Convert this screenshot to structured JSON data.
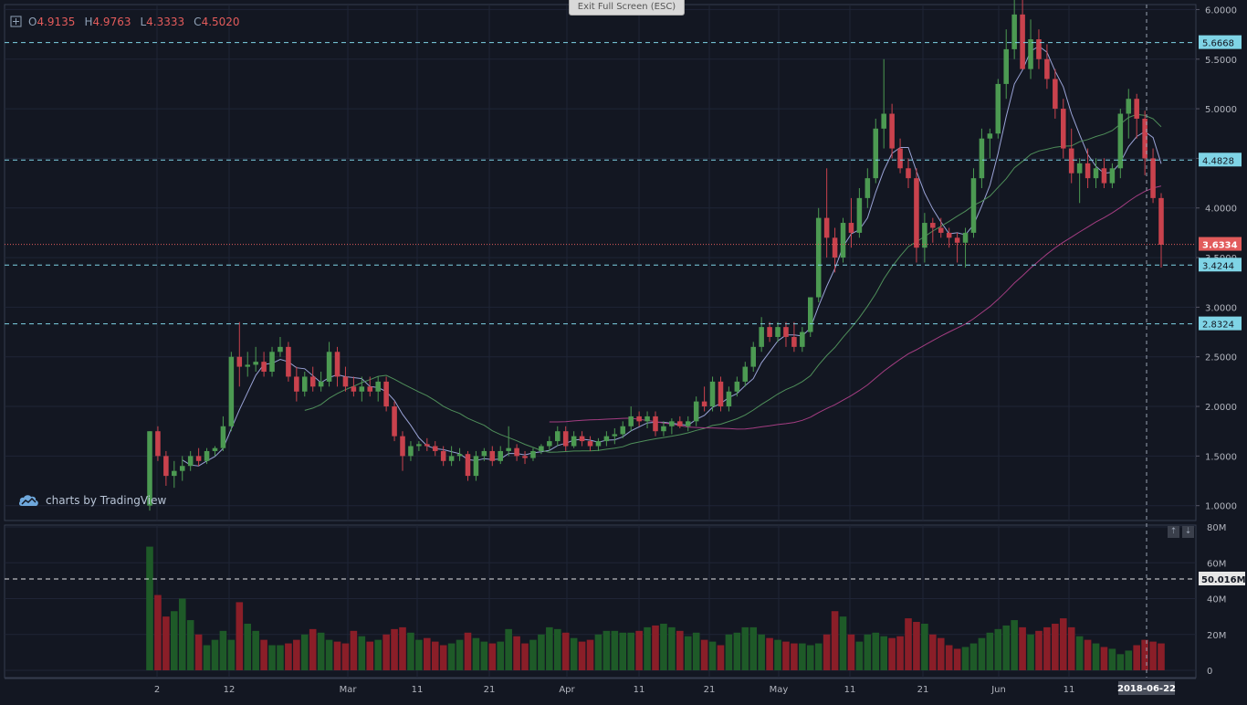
{
  "ui": {
    "exit_fullscreen_label": "Exit Full Screen (ESC)",
    "branding_text": "charts by TradingView",
    "ohlc": {
      "open_label": "O",
      "open_value": "4.9135",
      "high_label": "H",
      "high_value": "4.9763",
      "low_label": "L",
      "low_value": "4.3333",
      "close_label": "C",
      "close_value": "4.5020"
    },
    "crosshair_date_label": "2018-06-22",
    "volume_level_label": "50.016M",
    "current_price_label": "3.6334",
    "horizontal_lines": [
      "5.6668",
      "4.4828",
      "3.4244",
      "2.8324"
    ],
    "scale_buttons": [
      "⇡",
      "⇣"
    ]
  },
  "chart_data": {
    "type": "candlestick",
    "price_axis": {
      "ticks": [
        "1.0000",
        "1.5000",
        "2.0000",
        "2.5000",
        "3.0000",
        "3.5000",
        "4.0000",
        "4.5000",
        "5.0000",
        "5.5000",
        "6.0000"
      ],
      "range": [
        0.85,
        6.05
      ]
    },
    "volume_axis": {
      "ticks": [
        "0",
        "20M",
        "40M",
        "60M",
        "80M"
      ],
      "range": [
        0,
        80
      ]
    },
    "time_axis": [
      "2",
      "12",
      "Mar",
      "11",
      "21",
      "Apr",
      "11",
      "21",
      "May",
      "11",
      "21",
      "Jun",
      "11"
    ],
    "colors": {
      "up": "#4c9a52",
      "down": "#c9424d",
      "up_volume": "#1e5a28",
      "down_volume": "#8a1e28",
      "ma_fast": "#9aa3d6",
      "ma_mid": "#4f8f5a",
      "ma_slow": "#a43d82",
      "hline": "#7fd4e6",
      "price_line": "#e25b5b",
      "volume_line": "#e6e6e6"
    },
    "candles": [
      [
        1.0,
        1.75,
        0.95,
        1.75
      ],
      [
        1.75,
        1.8,
        1.45,
        1.5
      ],
      [
        1.5,
        1.55,
        1.2,
        1.3
      ],
      [
        1.3,
        1.45,
        1.18,
        1.35
      ],
      [
        1.35,
        1.5,
        1.25,
        1.4
      ],
      [
        1.4,
        1.55,
        1.35,
        1.5
      ],
      [
        1.5,
        1.58,
        1.4,
        1.45
      ],
      [
        1.45,
        1.58,
        1.42,
        1.55
      ],
      [
        1.55,
        1.6,
        1.5,
        1.58
      ],
      [
        1.58,
        1.9,
        1.55,
        1.8
      ],
      [
        1.8,
        2.55,
        1.75,
        2.5
      ],
      [
        2.5,
        2.85,
        2.2,
        2.4
      ],
      [
        2.4,
        2.55,
        2.3,
        2.42
      ],
      [
        2.42,
        2.6,
        2.35,
        2.45
      ],
      [
        2.45,
        2.55,
        2.3,
        2.35
      ],
      [
        2.35,
        2.6,
        2.3,
        2.55
      ],
      [
        2.55,
        2.7,
        2.5,
        2.6
      ],
      [
        2.6,
        2.65,
        2.25,
        2.3
      ],
      [
        2.3,
        2.4,
        2.05,
        2.15
      ],
      [
        2.15,
        2.35,
        2.1,
        2.3
      ],
      [
        2.3,
        2.4,
        2.15,
        2.2
      ],
      [
        2.2,
        2.35,
        2.15,
        2.25
      ],
      [
        2.25,
        2.65,
        2.2,
        2.55
      ],
      [
        2.55,
        2.6,
        2.2,
        2.3
      ],
      [
        2.3,
        2.4,
        2.15,
        2.2
      ],
      [
        2.2,
        2.3,
        2.1,
        2.15
      ],
      [
        2.15,
        2.3,
        2.05,
        2.2
      ],
      [
        2.2,
        2.3,
        2.1,
        2.15
      ],
      [
        2.15,
        2.3,
        2.05,
        2.25
      ],
      [
        2.25,
        2.3,
        1.95,
        2.0
      ],
      [
        2.0,
        2.05,
        1.65,
        1.7
      ],
      [
        1.7,
        1.75,
        1.35,
        1.5
      ],
      [
        1.5,
        1.65,
        1.45,
        1.6
      ],
      [
        1.6,
        1.65,
        1.55,
        1.62
      ],
      [
        1.62,
        1.68,
        1.55,
        1.6
      ],
      [
        1.6,
        1.65,
        1.5,
        1.55
      ],
      [
        1.55,
        1.6,
        1.4,
        1.45
      ],
      [
        1.45,
        1.6,
        1.4,
        1.5
      ],
      [
        1.5,
        1.58,
        1.45,
        1.52
      ],
      [
        1.52,
        1.55,
        1.25,
        1.3
      ],
      [
        1.3,
        1.55,
        1.25,
        1.5
      ],
      [
        1.5,
        1.58,
        1.45,
        1.55
      ],
      [
        1.55,
        1.6,
        1.4,
        1.45
      ],
      [
        1.45,
        1.6,
        1.42,
        1.55
      ],
      [
        1.55,
        1.8,
        1.5,
        1.58
      ],
      [
        1.58,
        1.62,
        1.45,
        1.5
      ],
      [
        1.5,
        1.55,
        1.42,
        1.48
      ],
      [
        1.48,
        1.58,
        1.45,
        1.55
      ],
      [
        1.55,
        1.62,
        1.52,
        1.6
      ],
      [
        1.6,
        1.7,
        1.55,
        1.65
      ],
      [
        1.65,
        1.8,
        1.6,
        1.75
      ],
      [
        1.75,
        1.8,
        1.55,
        1.6
      ],
      [
        1.6,
        1.75,
        1.58,
        1.7
      ],
      [
        1.7,
        1.75,
        1.6,
        1.65
      ],
      [
        1.65,
        1.7,
        1.55,
        1.6
      ],
      [
        1.6,
        1.68,
        1.55,
        1.65
      ],
      [
        1.65,
        1.75,
        1.6,
        1.7
      ],
      [
        1.7,
        1.78,
        1.62,
        1.72
      ],
      [
        1.72,
        1.85,
        1.68,
        1.8
      ],
      [
        1.8,
        2.0,
        1.75,
        1.9
      ],
      [
        1.9,
        1.95,
        1.8,
        1.85
      ],
      [
        1.85,
        1.95,
        1.78,
        1.9
      ],
      [
        1.9,
        1.95,
        1.7,
        1.75
      ],
      [
        1.75,
        1.85,
        1.7,
        1.8
      ],
      [
        1.8,
        1.88,
        1.72,
        1.85
      ],
      [
        1.85,
        1.9,
        1.78,
        1.8
      ],
      [
        1.8,
        1.9,
        1.75,
        1.85
      ],
      [
        1.85,
        2.1,
        1.8,
        2.05
      ],
      [
        2.05,
        2.2,
        1.95,
        2.0
      ],
      [
        2.0,
        2.3,
        1.95,
        2.25
      ],
      [
        2.25,
        2.3,
        1.95,
        2.0
      ],
      [
        2.0,
        2.2,
        1.95,
        2.15
      ],
      [
        2.15,
        2.3,
        2.1,
        2.25
      ],
      [
        2.25,
        2.45,
        2.2,
        2.4
      ],
      [
        2.4,
        2.65,
        2.35,
        2.6
      ],
      [
        2.6,
        2.9,
        2.55,
        2.8
      ],
      [
        2.8,
        2.85,
        2.65,
        2.7
      ],
      [
        2.7,
        2.85,
        2.65,
        2.8
      ],
      [
        2.8,
        2.85,
        2.6,
        2.7
      ],
      [
        2.7,
        2.85,
        2.55,
        2.6
      ],
      [
        2.6,
        2.8,
        2.55,
        2.75
      ],
      [
        2.75,
        3.1,
        2.7,
        3.1
      ],
      [
        3.1,
        4.0,
        3.05,
        3.9
      ],
      [
        3.9,
        4.4,
        3.5,
        3.7
      ],
      [
        3.7,
        3.8,
        3.35,
        3.5
      ],
      [
        3.5,
        3.9,
        3.45,
        3.85
      ],
      [
        3.85,
        4.1,
        3.6,
        3.75
      ],
      [
        3.75,
        4.2,
        3.7,
        4.1
      ],
      [
        4.1,
        4.4,
        4.0,
        4.3
      ],
      [
        4.3,
        4.9,
        4.25,
        4.8
      ],
      [
        4.8,
        5.5,
        4.6,
        4.95
      ],
      [
        4.95,
        5.05,
        4.5,
        4.6
      ],
      [
        4.6,
        4.7,
        4.35,
        4.4
      ],
      [
        4.4,
        4.5,
        4.2,
        4.3
      ],
      [
        4.3,
        4.4,
        3.45,
        3.6
      ],
      [
        3.6,
        3.95,
        3.45,
        3.85
      ],
      [
        3.85,
        3.9,
        3.65,
        3.8
      ],
      [
        3.8,
        3.9,
        3.7,
        3.75
      ],
      [
        3.75,
        3.8,
        3.6,
        3.7
      ],
      [
        3.7,
        3.75,
        3.45,
        3.65
      ],
      [
        3.65,
        3.8,
        3.4,
        3.75
      ],
      [
        3.75,
        4.4,
        3.7,
        4.3
      ],
      [
        4.3,
        4.8,
        4.2,
        4.7
      ],
      [
        4.7,
        4.8,
        4.5,
        4.75
      ],
      [
        4.75,
        5.3,
        4.7,
        5.25
      ],
      [
        5.25,
        5.8,
        5.1,
        5.6
      ],
      [
        5.6,
        6.1,
        5.5,
        5.95
      ],
      [
        5.95,
        6.1,
        5.4,
        5.4
      ],
      [
        5.4,
        5.9,
        5.3,
        5.7
      ],
      [
        5.7,
        5.8,
        5.4,
        5.5
      ],
      [
        5.5,
        5.65,
        5.2,
        5.3
      ],
      [
        5.3,
        5.4,
        4.9,
        5.0
      ],
      [
        5.0,
        5.1,
        4.5,
        4.6
      ],
      [
        4.6,
        4.8,
        4.25,
        4.35
      ],
      [
        4.35,
        4.5,
        4.05,
        4.45
      ],
      [
        4.45,
        4.6,
        4.2,
        4.3
      ],
      [
        4.3,
        4.5,
        4.2,
        4.4
      ],
      [
        4.4,
        4.5,
        4.2,
        4.25
      ],
      [
        4.25,
        4.45,
        4.2,
        4.4
      ],
      [
        4.4,
        5.0,
        4.3,
        4.95
      ],
      [
        4.95,
        5.2,
        4.7,
        5.1
      ],
      [
        5.1,
        5.15,
        4.7,
        4.9
      ],
      [
        4.9,
        4.98,
        4.33,
        4.5
      ],
      [
        4.5,
        4.6,
        4.05,
        4.1
      ],
      [
        4.1,
        4.15,
        3.4,
        3.63
      ]
    ],
    "volume": [
      69,
      42,
      30,
      33,
      40,
      28,
      20,
      14,
      17,
      22,
      17,
      38,
      26,
      22,
      17,
      14,
      14,
      15,
      17,
      20,
      23,
      21,
      17,
      16,
      15,
      22,
      19,
      16,
      17,
      20,
      23,
      24,
      21,
      17,
      18,
      16,
      14,
      15,
      17,
      21,
      18,
      16,
      15,
      16,
      23,
      19,
      15,
      17,
      20,
      24,
      23,
      21,
      18,
      16,
      17,
      20,
      22,
      22,
      21,
      21,
      22,
      24,
      25,
      26,
      24,
      22,
      19,
      21,
      17,
      16,
      14,
      20,
      21,
      24,
      24,
      20,
      18,
      17,
      16,
      15,
      15,
      14,
      15,
      20,
      33,
      30,
      20,
      16,
      20,
      21,
      19,
      18,
      19,
      29,
      27,
      26,
      20,
      18,
      14,
      12,
      13,
      15,
      18,
      21,
      23,
      25,
      28,
      24,
      20,
      22,
      24,
      26,
      29,
      24,
      19,
      17,
      15,
      13,
      12,
      9,
      11,
      14,
      17,
      16,
      15,
      20,
      19
    ]
  }
}
